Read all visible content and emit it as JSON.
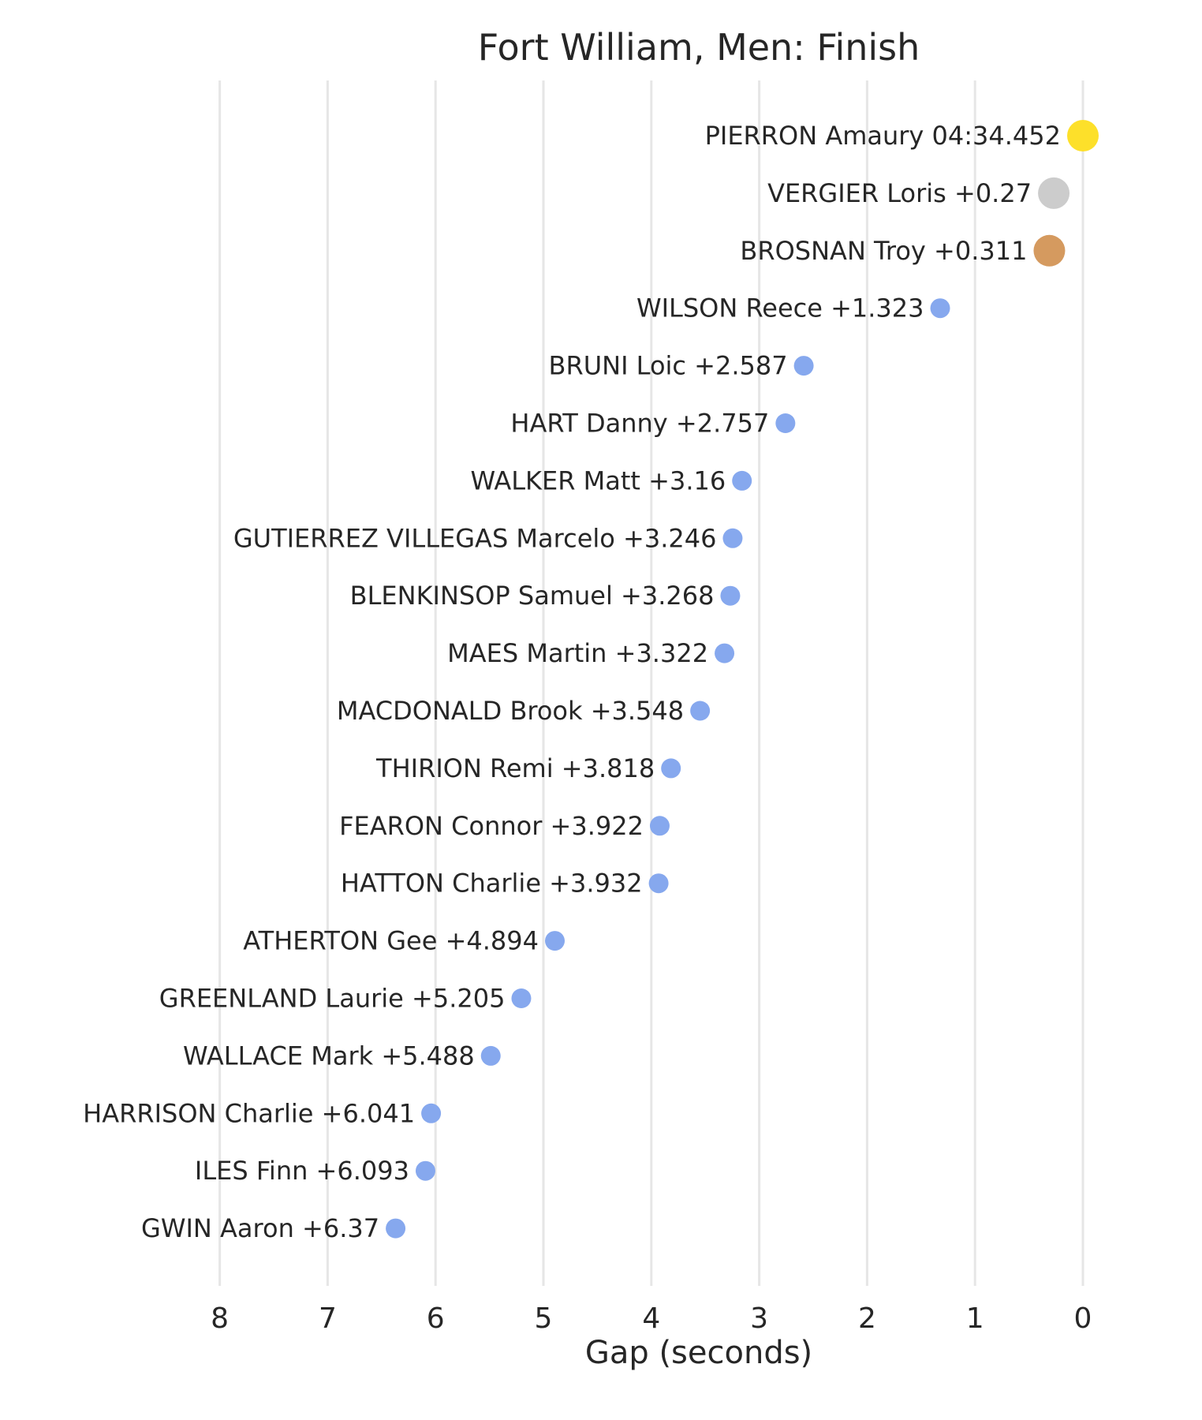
{
  "chart_data": {
    "type": "scatter",
    "title": "Fort William, Men: Finish",
    "xlabel": "Gap (seconds)",
    "ylabel": "",
    "x_axis_reversed": true,
    "xlim": [
      8,
      0
    ],
    "xticks": [
      8,
      7,
      6,
      5,
      4,
      3,
      2,
      1,
      0
    ],
    "grid": "vertical",
    "points": [
      {
        "label": "PIERRON Amaury 04:34.452",
        "gap": 0,
        "color": "#fde02a",
        "size": "large"
      },
      {
        "label": "VERGIER Loris +0.27",
        "gap": 0.27,
        "color": "#cccccc",
        "size": "large"
      },
      {
        "label": "BROSNAN Troy +0.311",
        "gap": 0.311,
        "color": "#d59a5f",
        "size": "large"
      },
      {
        "label": "WILSON Reece +1.323",
        "gap": 1.323,
        "color": "#86a8ee",
        "size": "small"
      },
      {
        "label": "BRUNI Loic +2.587",
        "gap": 2.587,
        "color": "#86a8ee",
        "size": "small"
      },
      {
        "label": "HART Danny +2.757",
        "gap": 2.757,
        "color": "#86a8ee",
        "size": "small"
      },
      {
        "label": "WALKER Matt +3.16",
        "gap": 3.16,
        "color": "#86a8ee",
        "size": "small"
      },
      {
        "label": "GUTIERREZ VILLEGAS Marcelo +3.246",
        "gap": 3.246,
        "color": "#86a8ee",
        "size": "small"
      },
      {
        "label": "BLENKINSOP Samuel +3.268",
        "gap": 3.268,
        "color": "#86a8ee",
        "size": "small"
      },
      {
        "label": "MAES Martin +3.322",
        "gap": 3.322,
        "color": "#86a8ee",
        "size": "small"
      },
      {
        "label": "MACDONALD Brook +3.548",
        "gap": 3.548,
        "color": "#86a8ee",
        "size": "small"
      },
      {
        "label": "THIRION Remi +3.818",
        "gap": 3.818,
        "color": "#86a8ee",
        "size": "small"
      },
      {
        "label": "FEARON Connor +3.922",
        "gap": 3.922,
        "color": "#86a8ee",
        "size": "small"
      },
      {
        "label": "HATTON Charlie +3.932",
        "gap": 3.932,
        "color": "#86a8ee",
        "size": "small"
      },
      {
        "label": "ATHERTON Gee +4.894",
        "gap": 4.894,
        "color": "#86a8ee",
        "size": "small"
      },
      {
        "label": "GREENLAND Laurie +5.205",
        "gap": 5.205,
        "color": "#86a8ee",
        "size": "small"
      },
      {
        "label": "WALLACE Mark +5.488",
        "gap": 5.488,
        "color": "#86a8ee",
        "size": "small"
      },
      {
        "label": "HARRISON Charlie +6.041",
        "gap": 6.041,
        "color": "#86a8ee",
        "size": "small"
      },
      {
        "label": "ILES Finn +6.093",
        "gap": 6.093,
        "color": "#86a8ee",
        "size": "small"
      },
      {
        "label": "GWIN Aaron +6.37",
        "gap": 6.37,
        "color": "#86a8ee",
        "size": "small"
      }
    ]
  }
}
